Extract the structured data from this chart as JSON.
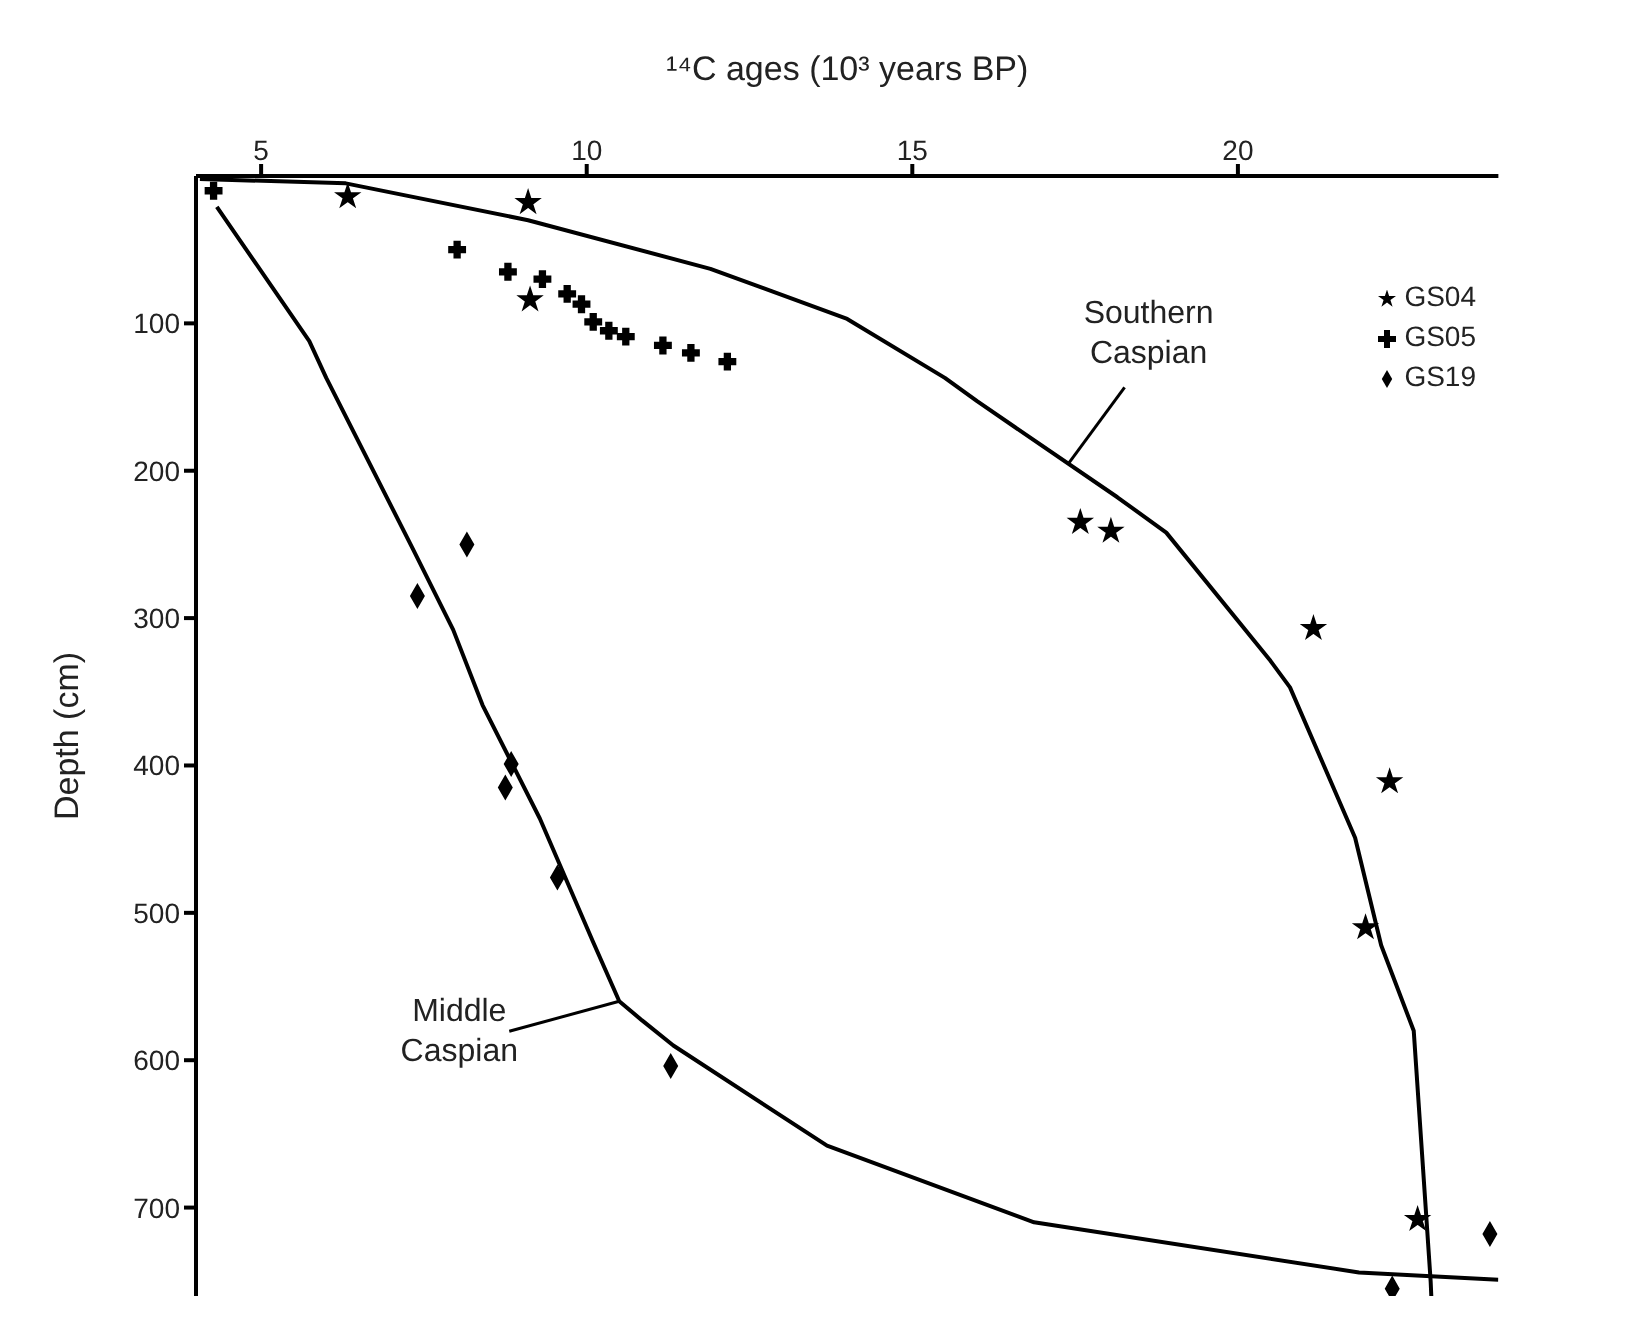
{
  "chart_data": {
    "type": "scatter",
    "xlabel": "¹⁴C ages (10³ years BP)",
    "ylabel": "Depth (cm)",
    "xlim": [
      4,
      24
    ],
    "xticks": [
      5,
      10,
      15,
      20
    ],
    "ylim": [
      760,
      0
    ],
    "yticks": [
      100,
      200,
      300,
      400,
      500,
      600,
      700
    ],
    "grid": false,
    "legend": "top right",
    "series": [
      {
        "name": "GS04",
        "marker": "star",
        "color": "#000000",
        "x": [
          6.33,
          9.1,
          9.13,
          17.58,
          18.05,
          21.16,
          22.33,
          21.96,
          22.76
        ],
        "values": [
          14,
          18,
          84,
          235,
          241,
          307,
          411,
          510,
          708
        ]
      },
      {
        "name": "GS05",
        "marker": "cross",
        "color": "#000000",
        "x": [
          4.27,
          8.01,
          8.79,
          9.32,
          9.7,
          9.92,
          10.1,
          10.34,
          10.6,
          11.17,
          11.6,
          12.16
        ],
        "values": [
          10,
          50,
          65,
          70,
          80,
          87,
          99,
          105,
          109,
          115,
          120,
          126
        ]
      },
      {
        "name": "GS19",
        "marker": "diamond",
        "color": "#000000",
        "x": [
          8.16,
          7.4,
          8.84,
          8.75,
          9.55,
          11.29,
          23.87,
          22.37
        ],
        "values": [
          250,
          285,
          399,
          415,
          476,
          604,
          718,
          755
        ]
      },
      {
        "type": "line",
        "marker": "none",
        "line_style": "solid",
        "color": "#000000",
        "x": [
          4.06,
          6.3,
          9.1,
          11.9,
          14,
          15.5,
          16,
          18.15,
          18.9,
          20.5,
          20.8,
          21.8,
          22.2,
          22.7,
          22.96,
          22.97
        ],
        "values": [
          2,
          5,
          30,
          63,
          97,
          137,
          153,
          218,
          242,
          329,
          347,
          449,
          522,
          580,
          750,
          760
        ]
      },
      {
        "type": "line",
        "marker": "none",
        "line_style": "solid",
        "color": "#000000",
        "x": [
          4.32,
          5.74,
          6,
          7.33,
          7.95,
          8.4,
          9.28,
          10.1,
          10.5,
          10.85,
          11.33,
          13.69,
          16.87,
          21.86,
          24
        ],
        "values": [
          21,
          112,
          137,
          253,
          308,
          359,
          436,
          520,
          560,
          573,
          590,
          658,
          710,
          744,
          749
        ]
      }
    ],
    "annotations": [
      {
        "text": "Southern Caspian",
        "x": 17.4,
        "y": 195
      },
      {
        "text": "Middle Caspian",
        "x": 10.5,
        "y": 560
      }
    ]
  }
}
